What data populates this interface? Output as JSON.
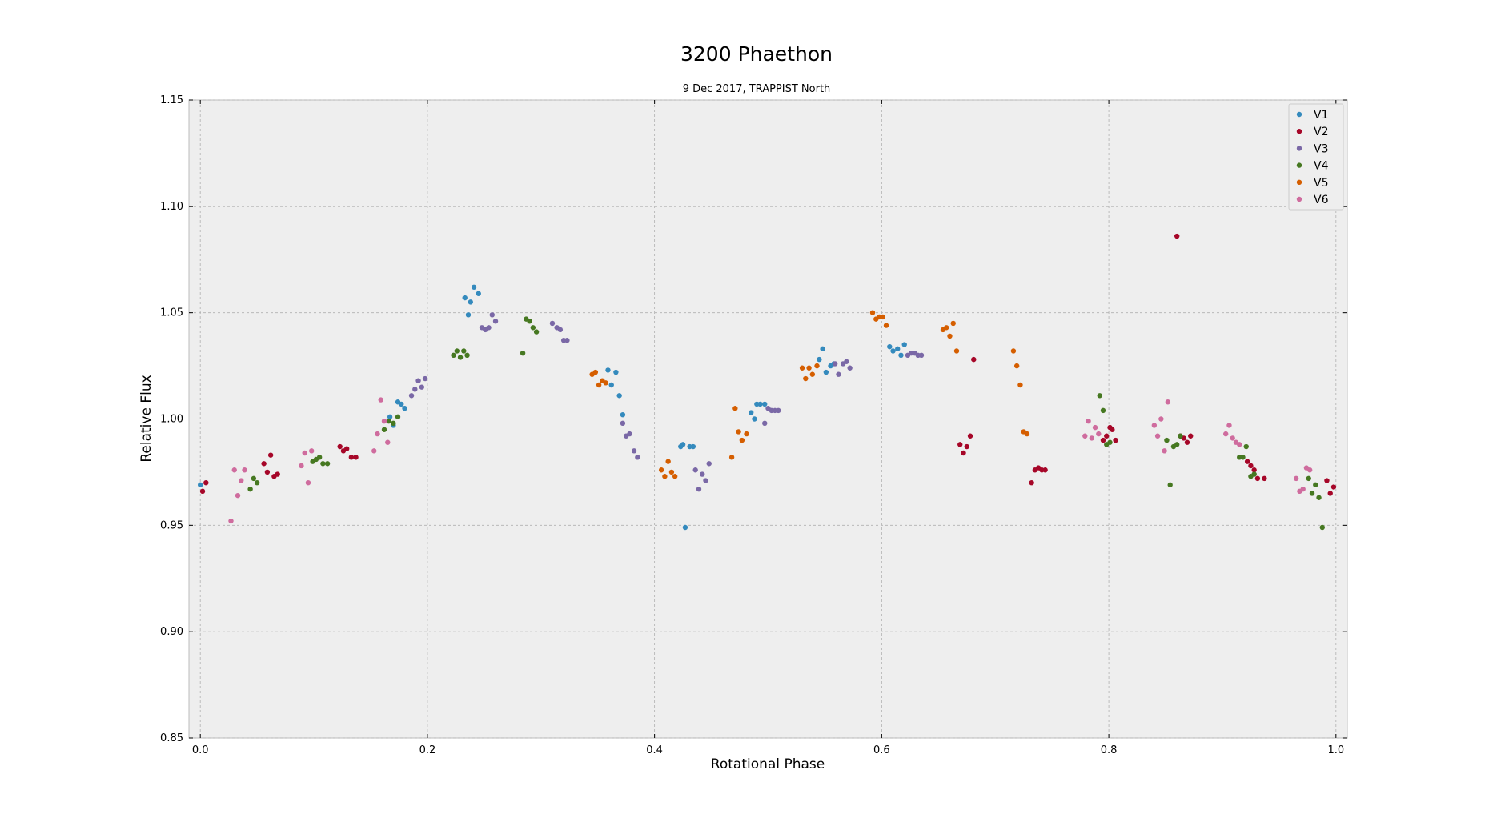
{
  "chart_data": {
    "type": "scatter",
    "title": "3200 Phaethon",
    "subtitle": "9 Dec 2017, TRAPPIST North",
    "xlabel": "Rotational Phase",
    "ylabel": "Relative Flux",
    "xlim": [
      -0.01,
      1.01
    ],
    "ylim": [
      0.85,
      1.15
    ],
    "xticks": [
      0.0,
      0.2,
      0.4,
      0.6,
      0.8,
      1.0
    ],
    "xtick_labels": [
      "0.0",
      "0.2",
      "0.4",
      "0.6",
      "0.8",
      "1.0"
    ],
    "yticks": [
      0.85,
      0.9,
      0.95,
      1.0,
      1.05,
      1.1,
      1.15
    ],
    "ytick_labels": [
      "0.85",
      "0.90",
      "0.95",
      "1.00",
      "1.05",
      "1.10",
      "1.15"
    ],
    "grid": true,
    "legend_position": "top-right",
    "series": [
      {
        "name": "V1",
        "color": "#348abd",
        "points": [
          [
            0.0,
            0.969
          ],
          [
            0.167,
            1.001
          ],
          [
            0.17,
            0.997
          ],
          [
            0.174,
            1.008
          ],
          [
            0.177,
            1.007
          ],
          [
            0.18,
            1.005
          ],
          [
            0.233,
            1.057
          ],
          [
            0.236,
            1.049
          ],
          [
            0.238,
            1.055
          ],
          [
            0.241,
            1.062
          ],
          [
            0.245,
            1.059
          ],
          [
            0.359,
            1.023
          ],
          [
            0.362,
            1.016
          ],
          [
            0.366,
            1.022
          ],
          [
            0.369,
            1.011
          ],
          [
            0.372,
            1.002
          ],
          [
            0.423,
            0.987
          ],
          [
            0.425,
            0.988
          ],
          [
            0.427,
            0.949
          ],
          [
            0.431,
            0.987
          ],
          [
            0.434,
            0.987
          ],
          [
            0.485,
            1.003
          ],
          [
            0.488,
            1.0
          ],
          [
            0.49,
            1.007
          ],
          [
            0.493,
            1.007
          ],
          [
            0.497,
            1.007
          ],
          [
            0.545,
            1.028
          ],
          [
            0.548,
            1.033
          ],
          [
            0.551,
            1.022
          ],
          [
            0.555,
            1.025
          ],
          [
            0.558,
            1.026
          ],
          [
            0.607,
            1.034
          ],
          [
            0.61,
            1.032
          ],
          [
            0.614,
            1.033
          ],
          [
            0.617,
            1.03
          ],
          [
            0.62,
            1.035
          ]
        ]
      },
      {
        "name": "V2",
        "color": "#a60628",
        "points": [
          [
            0.002,
            0.966
          ],
          [
            0.005,
            0.97
          ],
          [
            0.056,
            0.979
          ],
          [
            0.059,
            0.975
          ],
          [
            0.062,
            0.983
          ],
          [
            0.065,
            0.973
          ],
          [
            0.068,
            0.974
          ],
          [
            0.123,
            0.987
          ],
          [
            0.126,
            0.985
          ],
          [
            0.129,
            0.986
          ],
          [
            0.133,
            0.982
          ],
          [
            0.137,
            0.982
          ],
          [
            0.669,
            0.988
          ],
          [
            0.672,
            0.984
          ],
          [
            0.675,
            0.987
          ],
          [
            0.678,
            0.992
          ],
          [
            0.681,
            1.028
          ],
          [
            0.732,
            0.97
          ],
          [
            0.735,
            0.976
          ],
          [
            0.738,
            0.977
          ],
          [
            0.741,
            0.976
          ],
          [
            0.744,
            0.976
          ],
          [
            0.795,
            0.99
          ],
          [
            0.798,
            0.992
          ],
          [
            0.801,
            0.996
          ],
          [
            0.803,
            0.995
          ],
          [
            0.806,
            0.99
          ],
          [
            0.86,
            1.086
          ],
          [
            0.863,
            0.992
          ],
          [
            0.866,
            0.991
          ],
          [
            0.869,
            0.989
          ],
          [
            0.872,
            0.992
          ],
          [
            0.922,
            0.98
          ],
          [
            0.925,
            0.978
          ],
          [
            0.928,
            0.976
          ],
          [
            0.931,
            0.972
          ],
          [
            0.937,
            0.972
          ],
          [
            0.992,
            0.971
          ],
          [
            0.995,
            0.965
          ],
          [
            0.998,
            0.968
          ]
        ]
      },
      {
        "name": "V3",
        "color": "#7a68a6",
        "points": [
          [
            0.186,
            1.011
          ],
          [
            0.189,
            1.014
          ],
          [
            0.192,
            1.018
          ],
          [
            0.195,
            1.015
          ],
          [
            0.198,
            1.019
          ],
          [
            0.248,
            1.043
          ],
          [
            0.251,
            1.042
          ],
          [
            0.254,
            1.043
          ],
          [
            0.257,
            1.049
          ],
          [
            0.26,
            1.046
          ],
          [
            0.31,
            1.045
          ],
          [
            0.314,
            1.043
          ],
          [
            0.317,
            1.042
          ],
          [
            0.32,
            1.037
          ],
          [
            0.323,
            1.037
          ],
          [
            0.372,
            0.998
          ],
          [
            0.375,
            0.992
          ],
          [
            0.378,
            0.993
          ],
          [
            0.382,
            0.985
          ],
          [
            0.385,
            0.982
          ],
          [
            0.436,
            0.976
          ],
          [
            0.439,
            0.967
          ],
          [
            0.442,
            0.974
          ],
          [
            0.445,
            0.971
          ],
          [
            0.448,
            0.979
          ],
          [
            0.497,
            0.998
          ],
          [
            0.5,
            1.005
          ],
          [
            0.503,
            1.004
          ],
          [
            0.506,
            1.004
          ],
          [
            0.509,
            1.004
          ],
          [
            0.559,
            1.026
          ],
          [
            0.562,
            1.021
          ],
          [
            0.566,
            1.026
          ],
          [
            0.569,
            1.027
          ],
          [
            0.572,
            1.024
          ],
          [
            0.623,
            1.03
          ],
          [
            0.626,
            1.031
          ],
          [
            0.629,
            1.031
          ],
          [
            0.632,
            1.03
          ],
          [
            0.635,
            1.03
          ]
        ]
      },
      {
        "name": "V4",
        "color": "#467821",
        "points": [
          [
            0.044,
            0.967
          ],
          [
            0.047,
            0.972
          ],
          [
            0.05,
            0.97
          ],
          [
            0.099,
            0.98
          ],
          [
            0.102,
            0.981
          ],
          [
            0.105,
            0.982
          ],
          [
            0.108,
            0.979
          ],
          [
            0.112,
            0.979
          ],
          [
            0.162,
            0.995
          ],
          [
            0.166,
            0.999
          ],
          [
            0.17,
            0.998
          ],
          [
            0.174,
            1.001
          ],
          [
            0.223,
            1.03
          ],
          [
            0.226,
            1.032
          ],
          [
            0.229,
            1.029
          ],
          [
            0.232,
            1.032
          ],
          [
            0.235,
            1.03
          ],
          [
            0.284,
            1.031
          ],
          [
            0.287,
            1.047
          ],
          [
            0.29,
            1.046
          ],
          [
            0.293,
            1.043
          ],
          [
            0.296,
            1.041
          ],
          [
            0.792,
            1.011
          ],
          [
            0.795,
            1.004
          ],
          [
            0.798,
            0.988
          ],
          [
            0.801,
            0.989
          ],
          [
            0.851,
            0.99
          ],
          [
            0.854,
            0.969
          ],
          [
            0.857,
            0.987
          ],
          [
            0.86,
            0.988
          ],
          [
            0.863,
            0.992
          ],
          [
            0.915,
            0.982
          ],
          [
            0.918,
            0.982
          ],
          [
            0.921,
            0.987
          ],
          [
            0.925,
            0.973
          ],
          [
            0.928,
            0.974
          ],
          [
            0.976,
            0.972
          ],
          [
            0.979,
            0.965
          ],
          [
            0.982,
            0.969
          ],
          [
            0.985,
            0.963
          ],
          [
            0.988,
            0.949
          ]
        ]
      },
      {
        "name": "V5",
        "color": "#d55e00",
        "points": [
          [
            0.345,
            1.021
          ],
          [
            0.348,
            1.022
          ],
          [
            0.351,
            1.016
          ],
          [
            0.354,
            1.018
          ],
          [
            0.357,
            1.017
          ],
          [
            0.406,
            0.976
          ],
          [
            0.409,
            0.973
          ],
          [
            0.412,
            0.98
          ],
          [
            0.415,
            0.975
          ],
          [
            0.418,
            0.973
          ],
          [
            0.468,
            0.982
          ],
          [
            0.471,
            1.005
          ],
          [
            0.474,
            0.994
          ],
          [
            0.477,
            0.99
          ],
          [
            0.481,
            0.993
          ],
          [
            0.53,
            1.024
          ],
          [
            0.533,
            1.019
          ],
          [
            0.536,
            1.024
          ],
          [
            0.539,
            1.021
          ],
          [
            0.543,
            1.025
          ],
          [
            0.592,
            1.05
          ],
          [
            0.595,
            1.047
          ],
          [
            0.598,
            1.048
          ],
          [
            0.601,
            1.048
          ],
          [
            0.604,
            1.044
          ],
          [
            0.654,
            1.042
          ],
          [
            0.657,
            1.043
          ],
          [
            0.66,
            1.039
          ],
          [
            0.663,
            1.045
          ],
          [
            0.666,
            1.032
          ],
          [
            0.716,
            1.032
          ],
          [
            0.719,
            1.025
          ],
          [
            0.722,
            1.016
          ],
          [
            0.725,
            0.994
          ],
          [
            0.728,
            0.993
          ]
        ]
      },
      {
        "name": "V6",
        "color": "#cf6c9e",
        "points": [
          [
            0.027,
            0.952
          ],
          [
            0.03,
            0.976
          ],
          [
            0.033,
            0.964
          ],
          [
            0.036,
            0.971
          ],
          [
            0.039,
            0.976
          ],
          [
            0.089,
            0.978
          ],
          [
            0.092,
            0.984
          ],
          [
            0.095,
            0.97
          ],
          [
            0.098,
            0.985
          ],
          [
            0.153,
            0.985
          ],
          [
            0.156,
            0.993
          ],
          [
            0.159,
            1.009
          ],
          [
            0.162,
            0.999
          ],
          [
            0.165,
            0.989
          ],
          [
            0.779,
            0.992
          ],
          [
            0.782,
            0.999
          ],
          [
            0.785,
            0.991
          ],
          [
            0.788,
            0.996
          ],
          [
            0.791,
            0.993
          ],
          [
            0.84,
            0.997
          ],
          [
            0.843,
            0.992
          ],
          [
            0.846,
            1.0
          ],
          [
            0.849,
            0.985
          ],
          [
            0.852,
            1.008
          ],
          [
            0.903,
            0.993
          ],
          [
            0.906,
            0.997
          ],
          [
            0.909,
            0.991
          ],
          [
            0.912,
            0.989
          ],
          [
            0.915,
            0.988
          ],
          [
            0.965,
            0.972
          ],
          [
            0.968,
            0.966
          ],
          [
            0.971,
            0.967
          ],
          [
            0.974,
            0.977
          ],
          [
            0.977,
            0.976
          ]
        ]
      }
    ]
  }
}
